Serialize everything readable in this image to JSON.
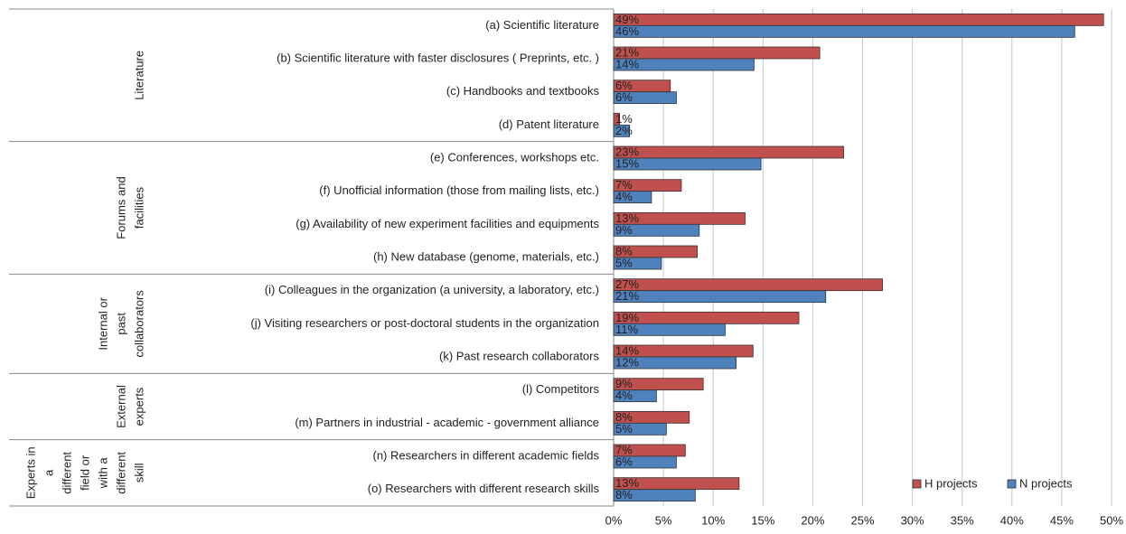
{
  "chart_data": {
    "type": "bar",
    "orientation": "horizontal",
    "groups": [
      {
        "label_lines": [
          "Literature"
        ],
        "categories": [
          "(a) Scientific literature",
          "(b) Scientific literature with faster disclosures ( Preprints, etc. )",
          "(c) Handbooks and textbooks",
          "(d) Patent literature"
        ]
      },
      {
        "label_lines": [
          "Forums and",
          "facilities"
        ],
        "categories": [
          "(e) Conferences, workshops etc.",
          "(f) Unofficial information (those from mailing lists, etc.)",
          "(g) Availability of new experiment facilities and equipments",
          "(h) New database (genome, materials, etc.)"
        ]
      },
      {
        "label_lines": [
          "Internal or",
          "past",
          "collaborators"
        ],
        "categories": [
          "(i) Colleagues in the organization (a university, a laboratory, etc.)",
          "(j) Visiting researchers or post-doctoral students in the organization",
          "(k) Past research collaborators"
        ]
      },
      {
        "label_lines": [
          "External",
          "experts"
        ],
        "categories": [
          "(l) Competitors",
          "(m) Partners in industrial - academic - government alliance"
        ]
      },
      {
        "label_lines": [
          "Experts in",
          "a",
          "different",
          "field or",
          "with a",
          "different",
          "skill"
        ],
        "categories": [
          "(n) Researchers in different academic fields",
          "(o) Researchers with different research skills"
        ]
      }
    ],
    "series": [
      {
        "name": "H projects",
        "color": "#c0504d",
        "values": [
          49.2,
          20.7,
          5.7,
          0.6,
          23.1,
          6.8,
          13.2,
          8.4,
          27.0,
          18.6,
          14.0,
          9.0,
          7.6,
          7.2,
          12.6
        ],
        "value_labels": [
          "49%",
          "21%",
          "6%",
          "1%",
          "23%",
          "7%",
          "13%",
          "8%",
          "27%",
          "19%",
          "14%",
          "9%",
          "8%",
          "7%",
          "13%"
        ]
      },
      {
        "name": "N projects",
        "color": "#4f81bd",
        "values": [
          46.3,
          14.1,
          6.3,
          1.6,
          14.8,
          3.8,
          8.6,
          4.8,
          21.3,
          11.2,
          12.3,
          4.3,
          5.3,
          6.3,
          8.2
        ],
        "value_labels": [
          "46%",
          "14%",
          "6%",
          "2%",
          "15%",
          "4%",
          "9%",
          "5%",
          "21%",
          "11%",
          "12%",
          "4%",
          "5%",
          "6%",
          "8%"
        ]
      }
    ],
    "xlim": [
      0,
      50
    ],
    "xticks": [
      {
        "value": 0,
        "label": "0%"
      },
      {
        "value": 5,
        "label": "5%"
      },
      {
        "value": 10,
        "label": "10%"
      },
      {
        "value": 15,
        "label": "15%"
      },
      {
        "value": 20,
        "label": "20%"
      },
      {
        "value": 25,
        "label": "25%"
      },
      {
        "value": 30,
        "label": "30%"
      },
      {
        "value": 35,
        "label": "35%"
      },
      {
        "value": 40,
        "label": "40%"
      },
      {
        "value": 45,
        "label": "45%"
      },
      {
        "value": 50,
        "label": "50%"
      }
    ],
    "grid": true,
    "legend": "lower right"
  }
}
